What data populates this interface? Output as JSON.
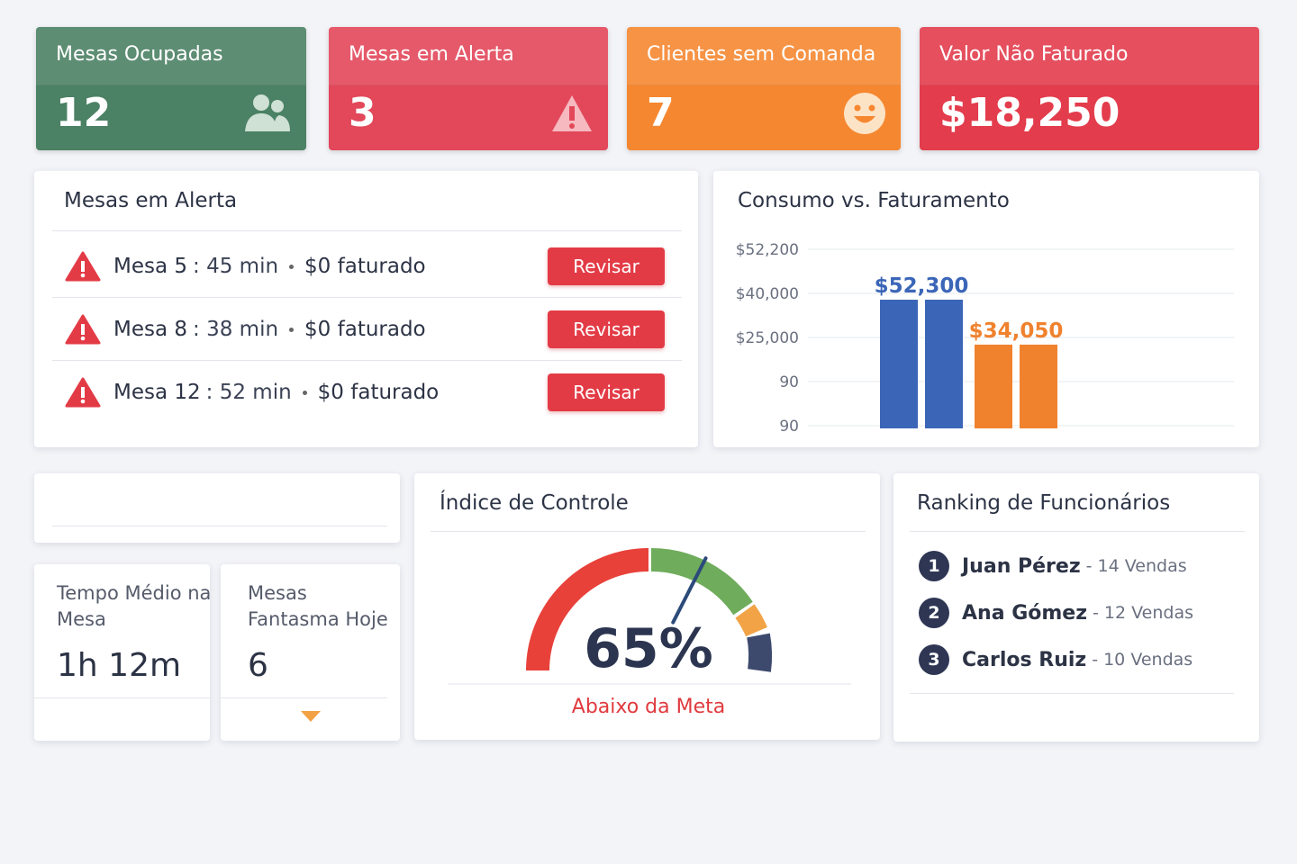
{
  "kpis": [
    {
      "title": "Mesas Ocupadas",
      "value": "12"
    },
    {
      "title": "Mesas em Alerta",
      "value": "3"
    },
    {
      "title": "Clientes sem Comanda",
      "value": "7"
    },
    {
      "title": "Valor Não Faturado",
      "value": "$18,250"
    }
  ],
  "alerts": {
    "title": "Mesas em Alerta",
    "rows": [
      {
        "table": "Mesa 5",
        "time": ": 45 min",
        "billed": "$0 faturado",
        "action": "Revisar"
      },
      {
        "table": "Mesa 8",
        "time": ": 38 min",
        "billed": "$0 faturado",
        "action": "Revisar"
      },
      {
        "table": "Mesa 12",
        "time": ": 52 min",
        "billed": "$0 faturado",
        "action": "Revisar"
      }
    ]
  },
  "chart": {
    "type": "bar",
    "title": "Consumo vs. Faturamento",
    "ytick_labels": [
      "$52,200",
      "$40,000",
      "$25,000",
      "90",
      "90"
    ],
    "series": [
      {
        "color": "#3b66b8",
        "values": [
          52300
        ],
        "value_labels": [
          "$52,300"
        ]
      },
      {
        "color": "#f0822e",
        "values": [
          34050
        ],
        "value_labels": [
          "$34,050"
        ]
      }
    ]
  },
  "stats": [
    {
      "label": "Tempo Médio na Mesa",
      "value": "1h 12m"
    },
    {
      "label": "Mesas Fantasma Hoje",
      "value": "6"
    }
  ],
  "gauge": {
    "title": "Índice de Controle",
    "value": 65,
    "value_label": "65%",
    "status": "Abaixo da Meta"
  },
  "ranking": {
    "title": "Ranking de Funcionários",
    "rows": [
      {
        "rank": 1,
        "name": "Juan Pérez",
        "sales": "- 14 Vendas"
      },
      {
        "rank": 2,
        "name": "Ana Gómez",
        "sales": "- 12 Vendas"
      },
      {
        "rank": 3,
        "name": "Carlos Ruiz",
        "sales": "- 10 Vendas"
      }
    ]
  }
}
